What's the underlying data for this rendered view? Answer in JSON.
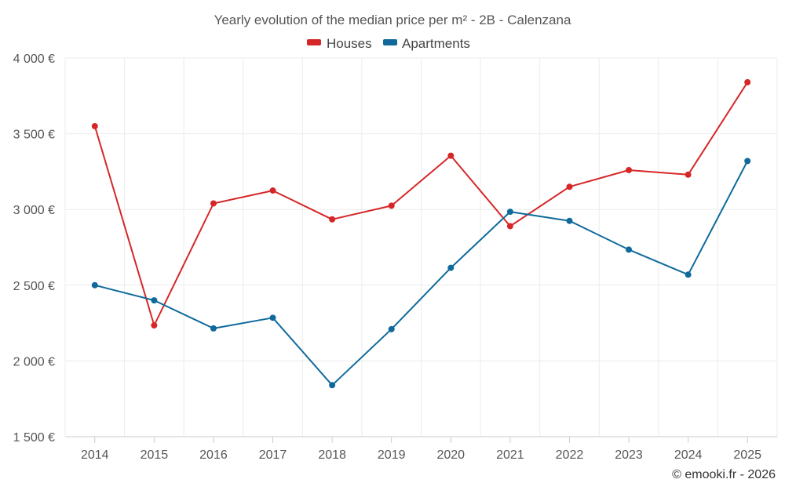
{
  "chart_data": {
    "type": "line",
    "title": "Yearly evolution of the median price per m² - 2B - Calenzana",
    "categories": [
      "2014",
      "2015",
      "2016",
      "2017",
      "2018",
      "2019",
      "2020",
      "2021",
      "2022",
      "2023",
      "2024",
      "2025"
    ],
    "series": [
      {
        "name": "Houses",
        "color": "#d62728",
        "values": [
          3550,
          2235,
          3040,
          3125,
          2935,
          3025,
          3355,
          2890,
          3150,
          3260,
          3230,
          3840
        ]
      },
      {
        "name": "Apartments",
        "color": "#0f6a9b",
        "values": [
          2500,
          2400,
          2215,
          2285,
          1840,
          2210,
          2615,
          2985,
          2925,
          2735,
          2570,
          3320
        ]
      }
    ],
    "ylim": [
      1500,
      4000
    ],
    "yticks": [
      1500,
      2000,
      2500,
      3000,
      3500,
      4000
    ],
    "ytick_labels": [
      "1 500 €",
      "2 000 €",
      "2 500 €",
      "3 000 €",
      "3 500 €",
      "4 000 €"
    ],
    "xlabel": "",
    "ylabel": "",
    "grid": true,
    "legend_position": "top-center"
  },
  "footer": {
    "credit": "© emooki.fr - 2026"
  }
}
